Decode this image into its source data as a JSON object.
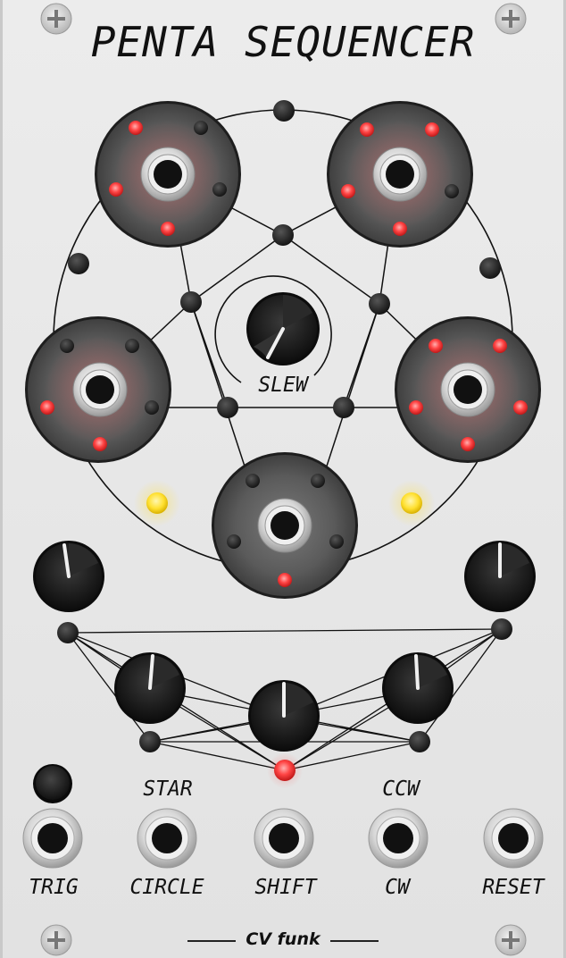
{
  "module": {
    "title": "PENTA SEQUENCER",
    "brand": "CV funk"
  },
  "labels": {
    "slew": "SLEW",
    "star": "STAR",
    "ccw": "CCW",
    "trig": "TRIG",
    "circle": "CIRCLE",
    "shift": "SHIFT",
    "cw": "CW",
    "reset": "RESET"
  },
  "colors": {
    "panel": "#e6e6e6",
    "led_red": "#ff4040",
    "led_yellow": "#ffe030",
    "knob": "#1a1a1a",
    "node": "#2b2b2b"
  }
}
